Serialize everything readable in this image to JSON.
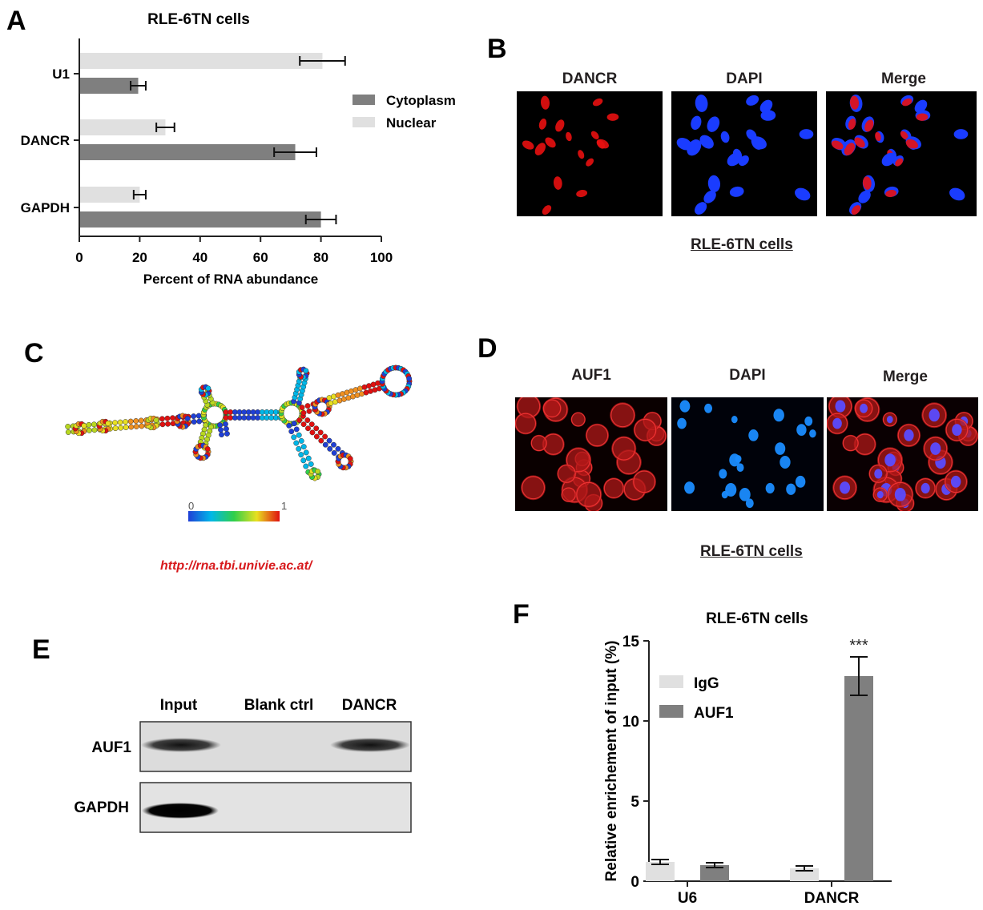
{
  "panels": {
    "A": {
      "letter": "A",
      "chart_data": {
        "type": "bar",
        "orientation": "horizontal",
        "title": "RLE-6TN cells",
        "xlabel": "Percent of RNA abundance",
        "ylabel": "",
        "xlim": [
          0,
          100
        ],
        "xticks": [
          "0",
          "20",
          "40",
          "60",
          "80",
          "100"
        ],
        "categories": [
          "U1",
          "DANCR",
          "GAPDH"
        ],
        "series": [
          {
            "name": "Cytoplasm",
            "color": "#7f7f7f",
            "values": [
              19.5,
              71.5,
              80
            ],
            "errors": [
              2.5,
              7,
              5
            ]
          },
          {
            "name": "Nuclear",
            "color": "#e0e0e0",
            "values": [
              80.5,
              28.5,
              20
            ],
            "errors": [
              7.5,
              3,
              2
            ]
          }
        ],
        "legend_position": "right",
        "grid": false
      }
    },
    "B": {
      "letter": "B",
      "labels": [
        "DANCR",
        "DAPI",
        "Merge"
      ],
      "caption": "RLE-6TN  cells"
    },
    "C": {
      "letter": "C",
      "scale_min": "0",
      "scale_max": "1",
      "url": "http://rna.tbi.univie.ac.at/"
    },
    "D": {
      "letter": "D",
      "labels": [
        "AUF1",
        "DAPI",
        "Merge"
      ],
      "caption": "RLE-6TN  cells"
    },
    "E": {
      "letter": "E",
      "lanes": [
        "Input",
        "Blank ctrl",
        "DANCR"
      ],
      "rows": [
        "AUF1",
        "GAPDH"
      ]
    },
    "F": {
      "letter": "F",
      "chart_data": {
        "type": "bar",
        "title": "RLE-6TN cells",
        "xlabel": "",
        "ylabel": "Relative enrichement of input (%)",
        "ylim": [
          0,
          15
        ],
        "yticks": [
          "0",
          "5",
          "10",
          "15"
        ],
        "categories": [
          "U6",
          "DANCR"
        ],
        "series": [
          {
            "name": "IgG",
            "color": "#e0e0e0",
            "values": [
              1.2,
              0.8
            ],
            "errors": [
              0.15,
              0.15
            ]
          },
          {
            "name": "AUF1",
            "color": "#7f7f7f",
            "values": [
              1.0,
              12.8
            ],
            "errors": [
              0.15,
              1.2
            ]
          }
        ],
        "annotations": [
          {
            "text": "***",
            "category": "DANCR",
            "series": "AUF1"
          }
        ],
        "legend_position": "top-left",
        "grid": false
      }
    }
  }
}
